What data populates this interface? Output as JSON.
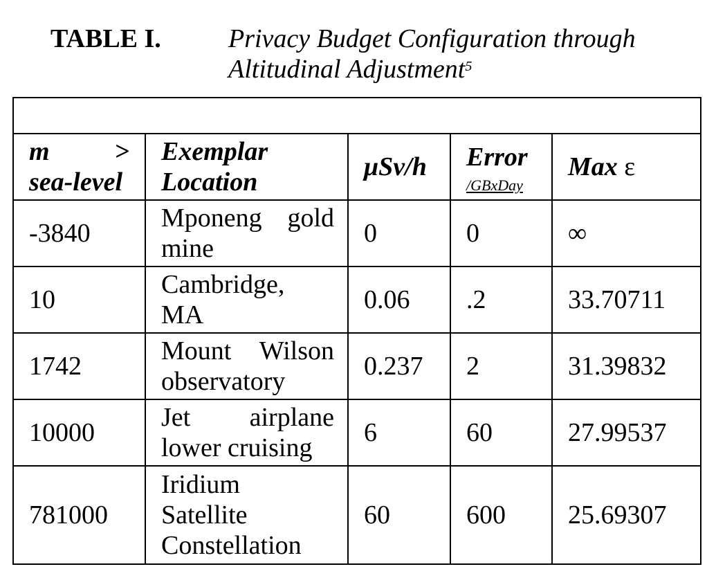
{
  "caption": {
    "label": "TABLE I.",
    "title_line1": "Privacy Budget Configuration through",
    "title_line2": "Altitudinal Adjustment",
    "footnote_mark": "5"
  },
  "table": {
    "headers": {
      "m_word": "m",
      "m_gt": ">",
      "m_line2": "sea-level",
      "location_line1": "Exemplar",
      "location_line2": "Location",
      "dose": "μSv/h",
      "error": "Error",
      "error_unit": "/GBxDay",
      "max_prefix": "Max",
      "max_symbol": "ε"
    },
    "rows": [
      {
        "m": "-3840",
        "loc1": "Mponeng",
        "loc1b": "gold",
        "loc2": "mine",
        "dose": "0",
        "error": "0",
        "max": "∞"
      },
      {
        "m": "10",
        "loc1": "Cambridge,",
        "loc2": "MA",
        "dose": "0.06",
        "error": ".2",
        "max": "33.70711"
      },
      {
        "m": "1742",
        "loc1": "Mount",
        "loc1b": "Wilson",
        "loc2": "observatory",
        "dose": "0.237",
        "error": "2",
        "max": "31.39832"
      },
      {
        "m": "10000",
        "loc1": "Jet",
        "loc1b": "airplane",
        "loc2": "lower cruising",
        "dose": "6",
        "error": "60",
        "max": "27.99537"
      },
      {
        "m": "781000",
        "loc1": "Iridium",
        "loc2": "Satellite",
        "loc3": "Constellation",
        "dose": "60",
        "error": "600",
        "max": "25.69307"
      }
    ]
  }
}
